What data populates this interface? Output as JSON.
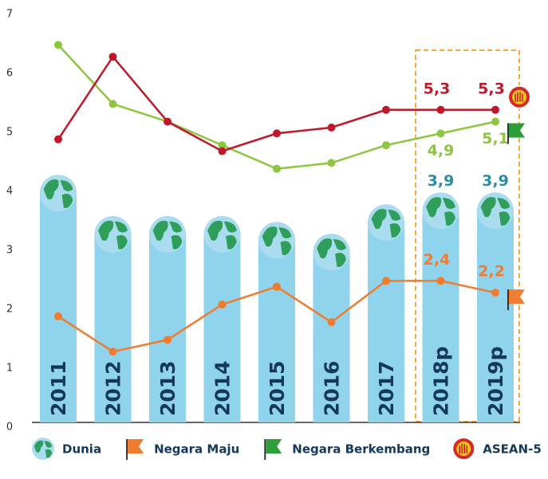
{
  "chart_data": {
    "type": "bar",
    "categories": [
      "2011",
      "2012",
      "2013",
      "2014",
      "2015",
      "2016",
      "2017",
      "2018p",
      "2019p"
    ],
    "ylim": [
      0,
      7
    ],
    "yticks": [
      0,
      1,
      2,
      3,
      4,
      5,
      6,
      7
    ],
    "series": [
      {
        "name": "Dunia",
        "type": "bar",
        "color": "#8fd3ec",
        "label_color": "#2a8ca8",
        "values": [
          4.2,
          3.5,
          3.5,
          3.5,
          3.4,
          3.2,
          3.7,
          3.9,
          3.9
        ],
        "value_labels": [
          null,
          null,
          null,
          null,
          null,
          null,
          null,
          "3,9",
          "3,9"
        ]
      },
      {
        "name": "Negara Maju",
        "type": "line",
        "color": "#f07c30",
        "values": [
          1.8,
          1.2,
          1.4,
          2.0,
          2.3,
          1.7,
          2.4,
          2.4,
          2.2
        ],
        "value_labels": [
          null,
          null,
          null,
          null,
          null,
          null,
          null,
          "2,4",
          "2,2"
        ]
      },
      {
        "name": "Negara Berkembang",
        "type": "line",
        "color": "#8dc63f",
        "values": [
          6.4,
          5.4,
          5.1,
          4.7,
          4.3,
          4.4,
          4.7,
          4.9,
          5.1
        ],
        "value_labels": [
          null,
          null,
          null,
          null,
          null,
          null,
          null,
          "4,9",
          "5,1"
        ]
      },
      {
        "name": "ASEAN-5",
        "type": "line",
        "color": "#c0182a",
        "values": [
          4.8,
          6.2,
          5.1,
          4.6,
          4.9,
          5.0,
          5.3,
          5.3,
          5.3
        ],
        "value_labels": [
          null,
          null,
          null,
          null,
          null,
          null,
          null,
          "5,3",
          "5,3"
        ]
      }
    ]
  }
}
